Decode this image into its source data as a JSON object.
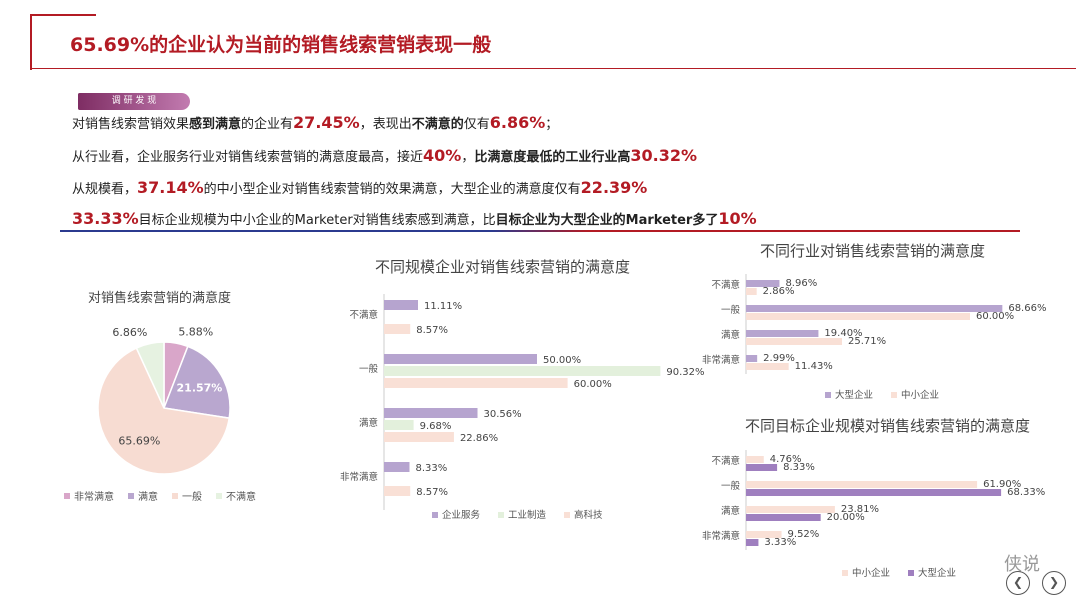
{
  "header": {
    "title": "65.69%的企业认为当前的销售线索营销表现一般",
    "tag": "调 研 发 现"
  },
  "findings": {
    "l1": {
      "a": "对销售线索营销效果",
      "b": "感到满意",
      "c": "的企业有",
      "d": "27.45%",
      "e": "，表现出",
      "f": "不满意的",
      "g": "仅有",
      "h": "6.86%",
      "i": "；"
    },
    "l2": {
      "a": "从行业看，企业服务行业对销售线索营销的满意度最高，接近",
      "b": "40%",
      "c": "，",
      "d": "比满意度最低的工业行业高",
      "e": "30.32%"
    },
    "l3": {
      "a": "从规模看，",
      "b": "37.14%",
      "c": "的中小型企业对销售线索营销的效果满意，大型企业的满意度仅有",
      "d": "22.39%"
    },
    "l4": {
      "a": "33.33%",
      "b": "目标企业规模为中小企业的Marketer对销售线索感到满意，比",
      "c": "目标企业为大型企业的Marketer多了",
      "d": "10%"
    }
  },
  "footer": {
    "brand": "侠说",
    "prev": "❮",
    "next": "❯"
  },
  "chart_data": [
    {
      "type": "pie",
      "title": "对销售线索营销的满意度",
      "categories": [
        "非常满意",
        "满意",
        "一般",
        "不满意"
      ],
      "values": [
        5.88,
        21.57,
        65.69,
        6.86
      ],
      "labels": [
        "5.88%",
        "21.57%",
        "65.69%",
        "6.86%"
      ],
      "colors": [
        "#d9a6c9",
        "#b9a7cf",
        "#f7dcd2",
        "#e6f2e1"
      ],
      "legend": "bottom"
    },
    {
      "type": "bar",
      "orientation": "horizontal",
      "title": "不同规模企业对销售线索营销的满意度",
      "categories": [
        "不满意",
        "一般",
        "满意",
        "非常满意"
      ],
      "series": [
        {
          "name": "企业服务",
          "values": [
            11.11,
            50.0,
            30.56,
            8.33
          ],
          "labels": [
            "11.11%",
            "50.00%",
            "30.56%",
            "8.33%"
          ],
          "color": "#b6a4cf"
        },
        {
          "name": "工业制造",
          "values": [
            null,
            90.32,
            9.68,
            null
          ],
          "labels": [
            "",
            "90.32%",
            "9.68%",
            ""
          ],
          "color": "#e3f0dc"
        },
        {
          "name": "高科技",
          "values": [
            8.57,
            60.0,
            22.86,
            8.57
          ],
          "labels": [
            "8.57%",
            "60.00%",
            "22.86%",
            "8.57%"
          ],
          "color": "#f9e0d6"
        }
      ],
      "xlim": [
        0,
        100
      ],
      "legend": "bottom"
    },
    {
      "type": "bar",
      "orientation": "horizontal",
      "title": "不同行业对销售线索营销的满意度",
      "categories": [
        "不满意",
        "一般",
        "满意",
        "非常满意"
      ],
      "series": [
        {
          "name": "大型企业",
          "values": [
            8.96,
            68.66,
            19.4,
            2.99
          ],
          "labels": [
            "8.96%",
            "68.66%",
            "19.40%",
            "2.99%"
          ],
          "color": "#b6a4cf"
        },
        {
          "name": "中小企业",
          "values": [
            2.86,
            60.0,
            25.71,
            11.43
          ],
          "labels": [
            "2.86%",
            "60.00%",
            "25.71%",
            "11.43%"
          ],
          "color": "#f9e0d6"
        }
      ],
      "xlim": [
        0,
        75
      ],
      "legend": "bottom"
    },
    {
      "type": "bar",
      "orientation": "horizontal",
      "title": "不同目标企业规模对销售线索营销的满意度",
      "categories": [
        "不满意",
        "一般",
        "满意",
        "非常满意"
      ],
      "series": [
        {
          "name": "中小企业",
          "values": [
            4.76,
            61.9,
            23.81,
            9.52
          ],
          "labels": [
            "4.76%",
            "61.90%",
            "23.81%",
            "9.52%"
          ],
          "color": "#f9e0d6"
        },
        {
          "name": "大型企业",
          "values": [
            8.33,
            68.33,
            20.0,
            3.33
          ],
          "labels": [
            "8.33%",
            "68.33%",
            "20.00%",
            "3.33%"
          ],
          "color": "#9f7fbf"
        }
      ],
      "xlim": [
        0,
        75
      ],
      "legend": "bottom"
    }
  ]
}
